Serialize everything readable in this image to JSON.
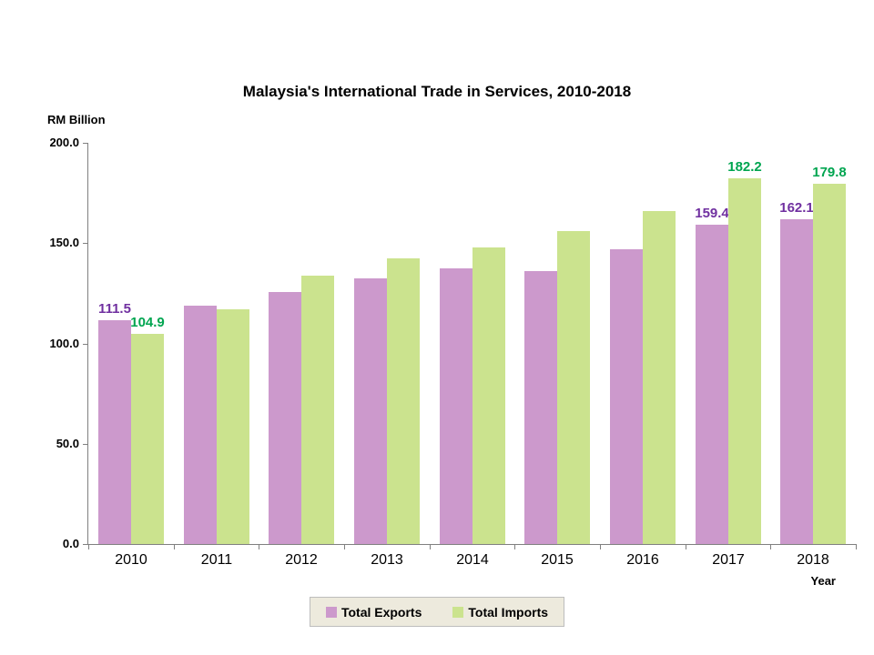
{
  "header": {
    "title": "Malaysia's International Trade in Services, 2010-2018"
  },
  "axes": {
    "y_unit": "RM Billion",
    "x_label": "Year"
  },
  "colors": {
    "exports_bar": "#CC99CC",
    "imports_bar": "#CBE38E",
    "exports_label": "#7030A0",
    "imports_label": "#00A550",
    "axis": "#808080",
    "legend_bg": "#EDEADD",
    "legend_border": "#BDBDBD",
    "background": "#FFFFFF"
  },
  "chart_data": {
    "type": "bar",
    "title": "Malaysia's International Trade in Services, 2010-2018",
    "categories": [
      "2010",
      "2011",
      "2012",
      "2013",
      "2014",
      "2015",
      "2016",
      "2017",
      "2018"
    ],
    "series": [
      {
        "name": "Total Exports",
        "color": "#CC99CC",
        "label_color": "#7030A0",
        "values": [
          111.5,
          119.0,
          125.4,
          132.4,
          137.4,
          136.0,
          146.8,
          159.4,
          162.1
        ],
        "data_labels": [
          "111.5",
          "",
          "",
          "",
          "",
          "",
          "",
          "159.4",
          "162.1"
        ]
      },
      {
        "name": "Total Imports",
        "color": "#CBE38E",
        "label_color": "#00A550",
        "values": [
          104.9,
          117.2,
          133.7,
          142.3,
          148.0,
          156.2,
          165.8,
          182.2,
          179.8
        ],
        "data_labels": [
          "104.9",
          "",
          "",
          "",
          "",
          "",
          "",
          "182.2",
          "179.8"
        ]
      }
    ],
    "xlabel": "Year",
    "ylabel": "RM Billion",
    "ylim": [
      0,
      200
    ],
    "yticks": [
      0,
      50,
      100,
      150,
      200
    ],
    "ytick_labels": [
      "0.0",
      "50.0",
      "100.0",
      "150.0",
      "200.0"
    ],
    "grid": false,
    "legend_position": "bottom"
  }
}
